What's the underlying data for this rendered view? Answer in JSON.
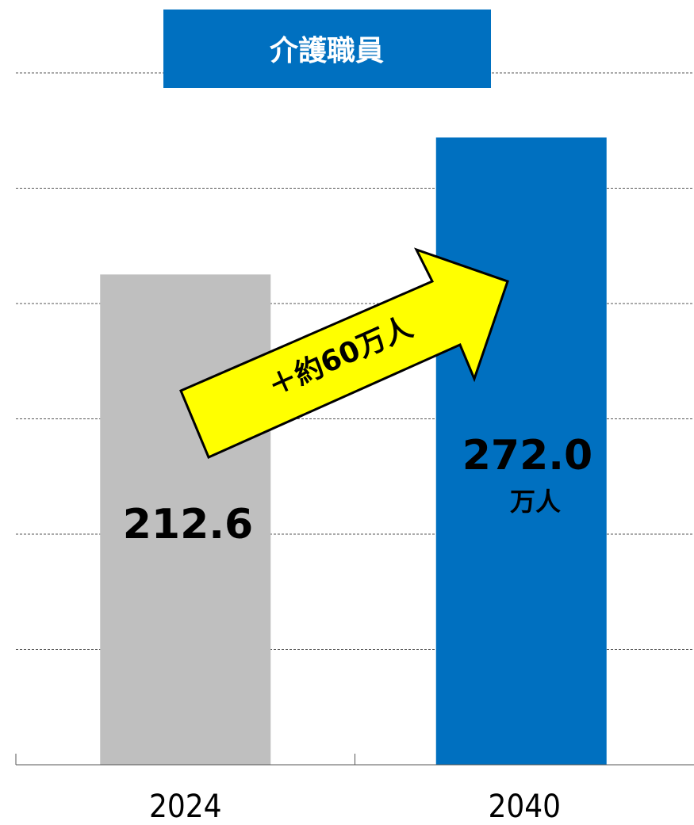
{
  "chart_data": {
    "type": "bar",
    "title": "介護職員",
    "categories": [
      "2024",
      "2040"
    ],
    "values": [
      212.6,
      272.0
    ],
    "value_labels": [
      "212.6",
      "272.0"
    ],
    "colors": [
      "#bfbfbf",
      "#0070c0"
    ],
    "unit": "万人",
    "annotation": "＋約60万人",
    "ylim": [
      0,
      300
    ],
    "yticks": [
      50,
      100,
      150,
      200,
      250,
      300
    ],
    "grid": true
  }
}
